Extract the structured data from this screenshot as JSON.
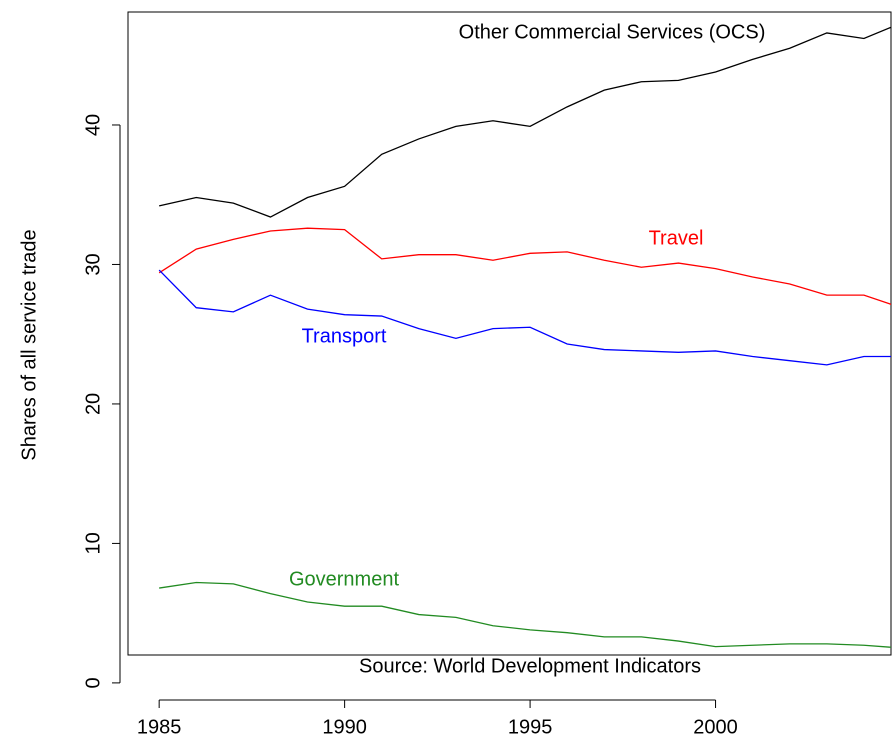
{
  "chart_data": {
    "type": "line",
    "y_label": "Shares of all service trade",
    "annotation": "Source: World Development Indicators",
    "x": [
      1985,
      1986,
      1987,
      1988,
      1989,
      1990,
      1991,
      1992,
      1993,
      1994,
      1995,
      1996,
      1997,
      1998,
      1999,
      2000,
      2001,
      2002,
      2003,
      2004,
      2005
    ],
    "series": [
      {
        "name": "Other Commercial Services (OCS)",
        "color": "#000000",
        "values": [
          34.2,
          34.8,
          34.4,
          33.4,
          34.8,
          35.6,
          37.9,
          39.0,
          39.9,
          40.3,
          39.9,
          41.3,
          42.5,
          43.1,
          43.2,
          43.8,
          44.7,
          45.5,
          46.6,
          46.2,
          47.3
        ]
      },
      {
        "name": "Travel",
        "color": "#ff0000",
        "values": [
          29.4,
          31.1,
          31.8,
          32.4,
          32.6,
          32.5,
          30.4,
          30.7,
          30.7,
          30.3,
          30.8,
          30.9,
          30.3,
          29.8,
          30.1,
          29.7,
          29.1,
          28.6,
          27.8,
          27.8,
          26.9
        ]
      },
      {
        "name": "Transport",
        "color": "#0000ff",
        "values": [
          29.6,
          26.9,
          26.6,
          27.8,
          26.8,
          26.4,
          26.3,
          25.4,
          24.7,
          25.4,
          25.5,
          24.3,
          23.9,
          23.8,
          23.7,
          23.8,
          23.4,
          23.1,
          22.8,
          23.4,
          23.4
        ]
      },
      {
        "name": "Government",
        "color": "#228b22",
        "values": [
          6.8,
          7.2,
          7.1,
          6.4,
          5.8,
          5.5,
          5.5,
          4.9,
          4.7,
          4.1,
          3.8,
          3.6,
          3.3,
          3.3,
          3.0,
          2.6,
          2.7,
          2.8,
          2.8,
          2.7,
          2.5
        ]
      }
    ],
    "xlim": [
      1984.16,
      2004.73
    ],
    "ylim": [
      2.0,
      48.1
    ],
    "xticks": [
      1985,
      1990,
      1995,
      2000
    ],
    "yticks": [
      0,
      10,
      20,
      30,
      40
    ]
  }
}
